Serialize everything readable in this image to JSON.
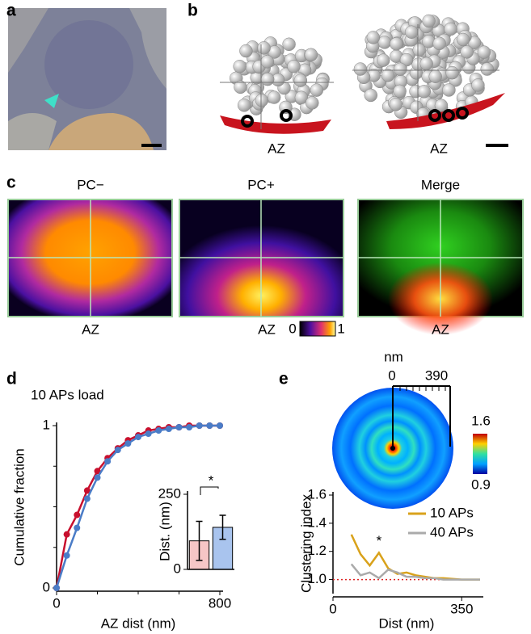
{
  "panel_labels": [
    "a",
    "b",
    "c",
    "d",
    "e"
  ],
  "panel_b": {
    "labels": [
      "AZ",
      "AZ"
    ]
  },
  "panel_c": {
    "titles": [
      "PC−",
      "PC+",
      "Merge"
    ],
    "labels": [
      "AZ",
      "AZ",
      "AZ"
    ],
    "colorbar": [
      0,
      1
    ]
  },
  "panel_e_disc": {
    "unit": "nm",
    "scale": [
      0,
      390
    ],
    "colorbar": [
      1.6,
      0.9
    ]
  },
  "chart_data": [
    {
      "type": "line",
      "title": "10 APs load",
      "xlabel": "AZ dist (nm)",
      "ylabel": "Cumulative fraction",
      "x": [
        0,
        50,
        100,
        150,
        200,
        250,
        300,
        350,
        400,
        450,
        500,
        550,
        600,
        650,
        700,
        750,
        800
      ],
      "series": [
        {
          "color": "#c8102e",
          "values": [
            0,
            0.33,
            0.45,
            0.6,
            0.72,
            0.8,
            0.86,
            0.91,
            0.94,
            0.97,
            0.98,
            0.99,
            0.99,
            1,
            1,
            1,
            1
          ]
        },
        {
          "color": "#4a7cc7",
          "values": [
            0,
            0.2,
            0.37,
            0.55,
            0.68,
            0.78,
            0.85,
            0.89,
            0.93,
            0.95,
            0.97,
            0.98,
            0.99,
            0.99,
            1,
            1,
            1
          ]
        }
      ],
      "markers": true,
      "xlim": [
        0,
        800
      ],
      "xticks": [
        0,
        800
      ],
      "minor_xticks": [
        200,
        400,
        600
      ],
      "ylim": [
        0,
        1
      ],
      "yticks": [
        0,
        1
      ],
      "minor_yticks": [
        0.25,
        0.5,
        0.75
      ]
    },
    {
      "type": "bar",
      "ylabel": "Dist. (nm)",
      "categories": [
        null,
        null
      ],
      "values": [
        95,
        140
      ],
      "errors": [
        65,
        40
      ],
      "colors": [
        "#f6c6c6",
        "#a9c4ee"
      ],
      "ylim": [
        0,
        250
      ],
      "yticks": [
        0,
        250
      ],
      "annotation": "*"
    },
    {
      "type": "line",
      "xlabel": "Dist (nm)",
      "ylabel": "Clustering index",
      "x": [
        50,
        75,
        100,
        125,
        150,
        175,
        200,
        225,
        250,
        275,
        300,
        350,
        400
      ],
      "series": [
        {
          "name": "10 APs",
          "color": "#d9a21b",
          "values": [
            1.32,
            1.18,
            1.1,
            1.19,
            1.08,
            1.04,
            1.05,
            1.03,
            1.02,
            1.01,
            1.01,
            1.0,
            1.0
          ]
        },
        {
          "name": "40 APs",
          "color": "#aaaaaa",
          "values": [
            1.11,
            1.03,
            1.05,
            1.01,
            1.07,
            1.05,
            1.02,
            1.02,
            1.01,
            1.01,
            1.0,
            1.0,
            1.0
          ]
        }
      ],
      "xlim": [
        0,
        400
      ],
      "xticks": [
        0,
        350
      ],
      "ylim": [
        0.9,
        1.6
      ],
      "yticks": [
        {
          "value": 1,
          "label": "1.0"
        },
        1.2,
        1.4,
        1.6
      ],
      "hline": 1,
      "hline_color": "#d22",
      "legend": "upper right",
      "annotation": "*"
    }
  ]
}
